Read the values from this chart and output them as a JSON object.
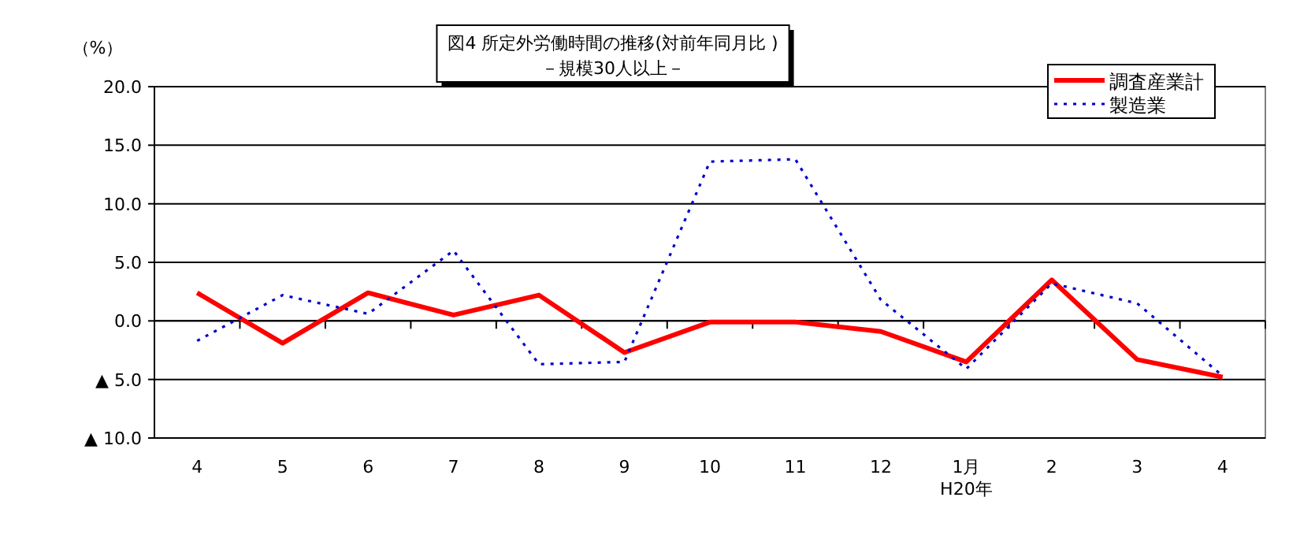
{
  "chart_data": {
    "type": "line",
    "title": "図4  所定外労働時間の推移(対前年同月比 )",
    "subtitle": "－規模30人以上－",
    "ylabel": "（%）",
    "categories": [
      "4",
      "5",
      "6",
      "7",
      "8",
      "9",
      "10",
      "11",
      "12",
      "1月",
      "2",
      "3",
      "4"
    ],
    "series": [
      {
        "name": "調査産業計",
        "color": "#ff0000",
        "line_style": "solid",
        "values": [
          2.4,
          -1.9,
          2.4,
          0.5,
          2.2,
          -2.7,
          -0.1,
          -0.1,
          -0.9,
          -3.5,
          3.5,
          -3.3,
          -4.8
        ]
      },
      {
        "name": "製造業",
        "color": "#0000cc",
        "line_style": "dotted",
        "values": [
          -1.7,
          2.2,
          0.6,
          6.0,
          -3.7,
          -3.5,
          13.6,
          13.8,
          1.8,
          -4.1,
          3.2,
          1.5,
          -4.7
        ]
      }
    ],
    "ylim": [
      -10,
      20
    ],
    "yticks": [
      {
        "value": 20,
        "label": "20.0"
      },
      {
        "value": 15,
        "label": "15.0"
      },
      {
        "value": 10,
        "label": "10.0"
      },
      {
        "value": 5,
        "label": "5.0"
      },
      {
        "value": 0,
        "label": "0.0"
      },
      {
        "value": -5,
        "label": "▲ 5.0"
      },
      {
        "value": -10,
        "label": "▲ 10.0"
      }
    ],
    "grid": "y",
    "legend": "top right",
    "marker": "none",
    "annotations": [
      "H20年"
    ]
  }
}
